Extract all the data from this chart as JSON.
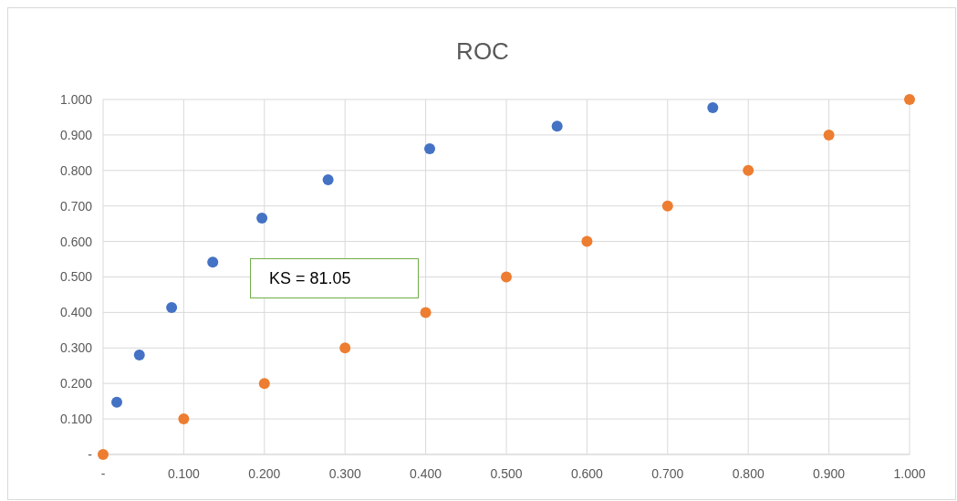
{
  "chart_data": {
    "type": "scatter",
    "title": "ROC",
    "series": [
      {
        "color": "#4472c4",
        "x": [
          0.017,
          0.045,
          0.085,
          0.136,
          0.197,
          0.279,
          0.405,
          0.563,
          0.756
        ],
        "values": [
          0.147,
          0.28,
          0.414,
          0.542,
          0.666,
          0.774,
          0.861,
          0.925,
          0.977
        ]
      },
      {
        "color": "#ed7d31",
        "x": [
          0,
          0.1,
          0.2,
          0.3,
          0.4,
          0.5,
          0.6,
          0.7,
          0.8,
          0.9,
          1
        ],
        "values": [
          0,
          0.1,
          0.2,
          0.3,
          0.4,
          0.5,
          0.6,
          0.7,
          0.8,
          0.9,
          1
        ]
      }
    ],
    "xlim": [
      0,
      1
    ],
    "ylim": [
      0,
      1
    ],
    "xticks": [
      {
        "value": 0,
        "label": "-"
      },
      {
        "value": 0.1,
        "label": "0.100"
      },
      {
        "value": 0.2,
        "label": "0.200"
      },
      {
        "value": 0.3,
        "label": "0.300"
      },
      {
        "value": 0.4,
        "label": "0.400"
      },
      {
        "value": 0.5,
        "label": "0.500"
      },
      {
        "value": 0.6,
        "label": "0.600"
      },
      {
        "value": 0.7,
        "label": "0.700"
      },
      {
        "value": 0.8,
        "label": "0.800"
      },
      {
        "value": 0.9,
        "label": "0.900"
      },
      {
        "value": 1,
        "label": "1.000"
      }
    ],
    "yticks": [
      {
        "value": 0,
        "label": "-"
      },
      {
        "value": 0.1,
        "label": "0.100"
      },
      {
        "value": 0.2,
        "label": "0.200"
      },
      {
        "value": 0.3,
        "label": "0.300"
      },
      {
        "value": 0.4,
        "label": "0.400"
      },
      {
        "value": 0.5,
        "label": "0.500"
      },
      {
        "value": 0.6,
        "label": "0.600"
      },
      {
        "value": 0.7,
        "label": "0.700"
      },
      {
        "value": 0.8,
        "label": "0.800"
      },
      {
        "value": 0.9,
        "label": "0.900"
      },
      {
        "value": 1,
        "label": "1.000"
      }
    ],
    "grid": true,
    "marker": "circle",
    "annotations": [
      "KS = 81.05"
    ]
  }
}
